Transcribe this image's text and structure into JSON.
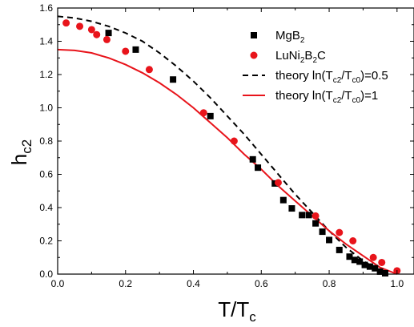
{
  "chart_data": {
    "type": "scatter",
    "xlim": [
      0.0,
      1.05
    ],
    "ylim": [
      0.0,
      1.6
    ],
    "x_ticks": [
      0.0,
      0.2,
      0.4,
      0.6,
      0.8,
      1.0
    ],
    "y_ticks": [
      0.0,
      0.2,
      0.4,
      0.6,
      0.8,
      1.0,
      1.2,
      1.4,
      1.6
    ],
    "x_tick_labels": [
      "0.0",
      "0.2",
      "0.4",
      "0.6",
      "0.8",
      "1.0"
    ],
    "y_tick_labels": [
      "0.0",
      "0.2",
      "0.4",
      "0.6",
      "0.8",
      "1.0",
      "1.2",
      "1.4",
      "1.6"
    ],
    "xlabel": {
      "base": "T/T",
      "sub": "c"
    },
    "ylabel": {
      "base": "h",
      "sub": "c2"
    },
    "grid": false,
    "legend_placement": "top-right",
    "series": [
      {
        "name": "MgB2",
        "legend_parts": [
          [
            "MgB",
            ""
          ],
          [
            "2",
            "sub"
          ]
        ],
        "kind": "scatter",
        "marker": "square",
        "color": "#000000",
        "x": [
          0.15,
          0.23,
          0.34,
          0.45,
          0.575,
          0.59,
          0.64,
          0.665,
          0.69,
          0.72,
          0.74,
          0.76,
          0.78,
          0.8,
          0.83,
          0.86,
          0.875,
          0.89,
          0.905,
          0.92,
          0.935,
          0.95,
          0.965
        ],
        "y": [
          1.45,
          1.35,
          1.17,
          0.95,
          0.69,
          0.64,
          0.545,
          0.445,
          0.395,
          0.355,
          0.355,
          0.305,
          0.255,
          0.205,
          0.145,
          0.105,
          0.085,
          0.075,
          0.055,
          0.045,
          0.035,
          0.015,
          0.005
        ]
      },
      {
        "name": "LuNi2B2C",
        "legend_parts": [
          [
            "LuNi",
            ""
          ],
          [
            "2",
            "sub"
          ],
          [
            "B",
            ""
          ],
          [
            "2",
            "sub"
          ],
          [
            "C",
            ""
          ]
        ],
        "kind": "scatter",
        "marker": "circle",
        "color": "#e8141b",
        "x": [
          0.025,
          0.065,
          0.1,
          0.115,
          0.145,
          0.2,
          0.27,
          0.43,
          0.52,
          0.65,
          0.76,
          0.83,
          0.87,
          0.93,
          0.955,
          1.0
        ],
        "y": [
          1.51,
          1.49,
          1.47,
          1.44,
          1.41,
          1.34,
          1.23,
          0.97,
          0.8,
          0.55,
          0.35,
          0.25,
          0.2,
          0.1,
          0.07,
          0.02
        ]
      },
      {
        "name": "theory ln(Tc2/Tc0)=0.5",
        "legend_parts": [
          [
            "theory ln(T",
            ""
          ],
          [
            "c2",
            "sub"
          ],
          [
            "/T",
            ""
          ],
          [
            "c0",
            "sub"
          ],
          [
            ")=0.5",
            ""
          ]
        ],
        "kind": "line",
        "dash": "7,5",
        "color": "#000000",
        "x": [
          0.0,
          0.05,
          0.1,
          0.15,
          0.2,
          0.25,
          0.3,
          0.35,
          0.4,
          0.45,
          0.5,
          0.55,
          0.6,
          0.65,
          0.7,
          0.75,
          0.8,
          0.85,
          0.9,
          0.95,
          0.97
        ],
        "y": [
          1.55,
          1.54,
          1.52,
          1.49,
          1.45,
          1.4,
          1.33,
          1.25,
          1.16,
          1.06,
          0.95,
          0.84,
          0.72,
          0.6,
          0.48,
          0.37,
          0.26,
          0.16,
          0.08,
          0.02,
          0.0
        ]
      },
      {
        "name": "theory ln(Tc2/Tc0)=1",
        "legend_parts": [
          [
            "theory ln(T",
            ""
          ],
          [
            "c2",
            "sub"
          ],
          [
            "/T",
            ""
          ],
          [
            "c0",
            "sub"
          ],
          [
            ")=1",
            ""
          ]
        ],
        "kind": "line",
        "dash": "",
        "color": "#e8141b",
        "x": [
          0.0,
          0.05,
          0.1,
          0.15,
          0.2,
          0.25,
          0.3,
          0.35,
          0.4,
          0.45,
          0.5,
          0.55,
          0.6,
          0.65,
          0.7,
          0.75,
          0.8,
          0.85,
          0.9,
          0.95,
          1.0
        ],
        "y": [
          1.35,
          1.345,
          1.33,
          1.3,
          1.26,
          1.21,
          1.15,
          1.08,
          1.0,
          0.91,
          0.82,
          0.72,
          0.63,
          0.53,
          0.44,
          0.35,
          0.26,
          0.18,
          0.11,
          0.04,
          0.0
        ]
      }
    ]
  }
}
